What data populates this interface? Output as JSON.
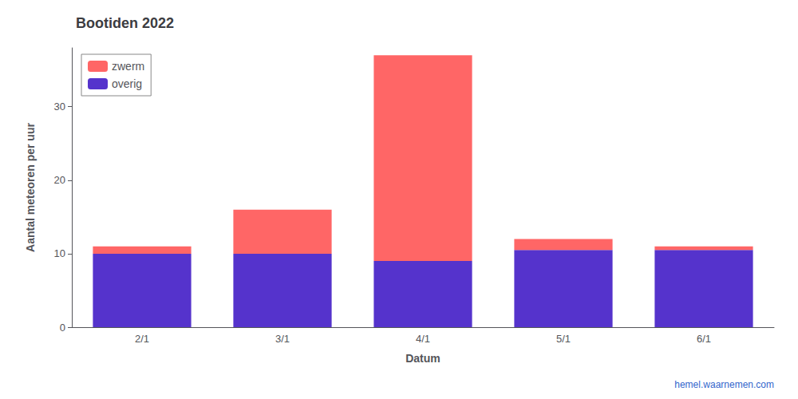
{
  "chart_data": {
    "type": "bar",
    "stacked": true,
    "title": "Bootiden 2022",
    "xlabel": "Datum",
    "ylabel": "Aantal meteoren per uur",
    "categories": [
      "2/1",
      "3/1",
      "4/1",
      "5/1",
      "6/1"
    ],
    "series": [
      {
        "name": "overig",
        "color": "#5533CC",
        "values": [
          10.0,
          10.0,
          9.0,
          10.5,
          10.5
        ]
      },
      {
        "name": "zwerm",
        "color": "#FF6666",
        "values": [
          1.0,
          6.0,
          28.0,
          1.5,
          0.5
        ]
      }
    ],
    "ylim": [
      0,
      38
    ],
    "yticks": [
      0,
      10,
      20,
      30
    ],
    "grid": false,
    "legend": "upper left",
    "annotations": [
      {
        "text": "hemel.waarnemen.com",
        "color": "#3366CC"
      }
    ]
  }
}
